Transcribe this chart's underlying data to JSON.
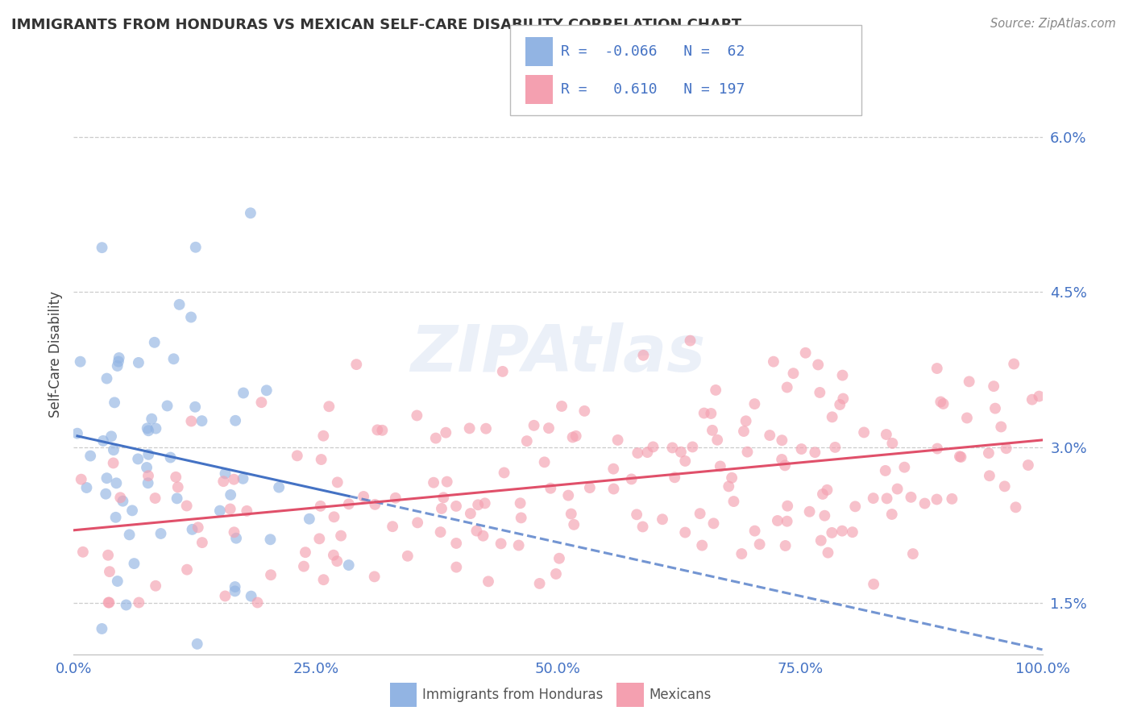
{
  "title": "IMMIGRANTS FROM HONDURAS VS MEXICAN SELF-CARE DISABILITY CORRELATION CHART",
  "source_text": "Source: ZipAtlas.com",
  "ylabel": "Self-Care Disability",
  "legend_labels": [
    "Immigrants from Honduras",
    "Mexicans"
  ],
  "blue_color": "#92B4E3",
  "pink_color": "#F4A0B0",
  "blue_line_color": "#4472C4",
  "pink_line_color": "#E0506A",
  "R_blue": -0.066,
  "N_blue": 62,
  "R_pink": 0.61,
  "N_pink": 197,
  "x_min": 0,
  "x_max": 100,
  "y_min": 1.0,
  "y_max": 6.8,
  "y_ticks": [
    1.5,
    3.0,
    4.5,
    6.0
  ],
  "x_ticks": [
    0,
    25,
    50,
    75,
    100
  ],
  "watermark": "ZIPAtlas",
  "background_color": "#FFFFFF",
  "grid_color": "#CCCCCC",
  "title_color": "#333333",
  "axis_label_color": "#444444",
  "tick_label_color": "#4472C4",
  "legend_R_color": "#4472C4",
  "blue_seed": 10,
  "pink_seed": 20
}
